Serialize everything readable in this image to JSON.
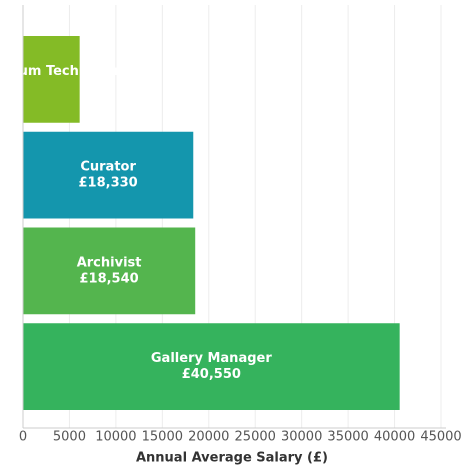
{
  "chart_data": {
    "type": "hbar",
    "x_label": "Annual Average Salary (£)",
    "categories": [
      "Museum Technician",
      "Curator",
      "Archivist",
      "Gallery Manager"
    ],
    "values": [
      6100,
      18330,
      18540,
      40550
    ],
    "value_labels": [
      null,
      "£18,330",
      "£18,540",
      "£40,550"
    ],
    "colors": [
      "#84bb26",
      "#1496ad",
      "#54b54e",
      "#35b35d"
    ],
    "xlim": [
      0,
      45000
    ],
    "xticks": [
      0,
      5000,
      10000,
      15000,
      20000,
      25000,
      30000,
      35000,
      40000,
      45000
    ],
    "grid": true
  }
}
